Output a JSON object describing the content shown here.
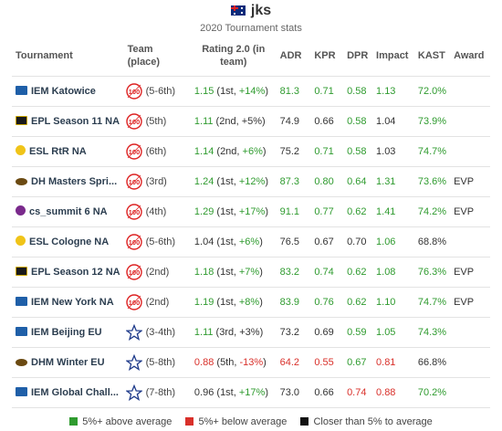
{
  "header": {
    "flag_icon": "australia-flag-icon",
    "player": "jks",
    "subtitle": "2020 Tournament stats"
  },
  "columns": {
    "tournament": "Tournament",
    "team": "Team (place)",
    "rating": "Rating 2.0 (in team)",
    "adr": "ADR",
    "kpr": "KPR",
    "dpr": "DPR",
    "impact": "Impact",
    "kast": "KAST",
    "award": "Award"
  },
  "colors": {
    "above": "#2f9b2f",
    "below": "#d9302a",
    "close": "#333333"
  },
  "rows": [
    {
      "tournament": "IEM Katowice",
      "logo": "iem",
      "team_logo": "100thieves-logo-icon",
      "place": "(5-6th)",
      "rating": "1.15",
      "rank": "1st, ",
      "diff": "+14%",
      "rating_c": "g",
      "diff_c": "g",
      "adr": "81.3",
      "adr_c": "g",
      "kpr": "0.71",
      "kpr_c": "g",
      "dpr": "0.58",
      "dpr_c": "g",
      "impact": "1.13",
      "impact_c": "g",
      "kast": "72.0%",
      "kast_c": "g",
      "award": ""
    },
    {
      "tournament": "EPL Season 11 NA",
      "logo": "epl",
      "team_logo": "100thieves-logo-icon",
      "place": "(5th)",
      "rating": "1.11",
      "rank": "2nd, ",
      "diff": "+5%",
      "rating_c": "g",
      "diff_c": "k",
      "adr": "74.9",
      "adr_c": "k",
      "kpr": "0.66",
      "kpr_c": "k",
      "dpr": "0.58",
      "dpr_c": "g",
      "impact": "1.04",
      "impact_c": "k",
      "kast": "73.9%",
      "kast_c": "g",
      "award": ""
    },
    {
      "tournament": "ESL RtR NA",
      "logo": "esl",
      "team_logo": "100thieves-logo-icon",
      "place": "(6th)",
      "rating": "1.14",
      "rank": "2nd, ",
      "diff": "+6%",
      "rating_c": "g",
      "diff_c": "g",
      "adr": "75.2",
      "adr_c": "k",
      "kpr": "0.71",
      "kpr_c": "g",
      "dpr": "0.58",
      "dpr_c": "g",
      "impact": "1.03",
      "impact_c": "k",
      "kast": "74.7%",
      "kast_c": "g",
      "award": ""
    },
    {
      "tournament": "DH Masters Spri...",
      "logo": "dh",
      "team_logo": "100thieves-logo-icon",
      "place": "(3rd)",
      "rating": "1.24",
      "rank": "1st, ",
      "diff": "+12%",
      "rating_c": "g",
      "diff_c": "g",
      "adr": "87.3",
      "adr_c": "g",
      "kpr": "0.80",
      "kpr_c": "g",
      "dpr": "0.64",
      "dpr_c": "g",
      "impact": "1.31",
      "impact_c": "g",
      "kast": "73.6%",
      "kast_c": "g",
      "award": "EVP"
    },
    {
      "tournament": "cs_summit 6 NA",
      "logo": "summit",
      "team_logo": "100thieves-logo-icon",
      "place": "(4th)",
      "rating": "1.29",
      "rank": "1st, ",
      "diff": "+17%",
      "rating_c": "g",
      "diff_c": "g",
      "adr": "91.1",
      "adr_c": "g",
      "kpr": "0.77",
      "kpr_c": "g",
      "dpr": "0.62",
      "dpr_c": "g",
      "impact": "1.41",
      "impact_c": "g",
      "kast": "74.2%",
      "kast_c": "g",
      "award": "EVP"
    },
    {
      "tournament": "ESL Cologne NA",
      "logo": "esl",
      "team_logo": "100thieves-logo-icon",
      "place": "(5-6th)",
      "rating": "1.04",
      "rank": "1st, ",
      "diff": "+6%",
      "rating_c": "k",
      "diff_c": "g",
      "adr": "76.5",
      "adr_c": "k",
      "kpr": "0.67",
      "kpr_c": "k",
      "dpr": "0.70",
      "dpr_c": "k",
      "impact": "1.06",
      "impact_c": "g",
      "kast": "68.8%",
      "kast_c": "k",
      "award": ""
    },
    {
      "tournament": "EPL Season 12 NA",
      "logo": "epl",
      "team_logo": "100thieves-logo-icon",
      "place": "(2nd)",
      "rating": "1.18",
      "rank": "1st, ",
      "diff": "+7%",
      "rating_c": "g",
      "diff_c": "g",
      "adr": "83.2",
      "adr_c": "g",
      "kpr": "0.74",
      "kpr_c": "g",
      "dpr": "0.62",
      "dpr_c": "g",
      "impact": "1.08",
      "impact_c": "g",
      "kast": "76.3%",
      "kast_c": "g",
      "award": "EVP"
    },
    {
      "tournament": "IEM New York NA",
      "logo": "iem",
      "team_logo": "100thieves-logo-icon",
      "place": "(2nd)",
      "rating": "1.19",
      "rank": "1st, ",
      "diff": "+8%",
      "rating_c": "g",
      "diff_c": "g",
      "adr": "83.9",
      "adr_c": "g",
      "kpr": "0.76",
      "kpr_c": "g",
      "dpr": "0.62",
      "dpr_c": "g",
      "impact": "1.10",
      "impact_c": "g",
      "kast": "74.7%",
      "kast_c": "g",
      "award": "EVP"
    },
    {
      "tournament": "IEM Beijing EU",
      "logo": "iem",
      "team_logo": "star-team-logo-icon",
      "place": "(3-4th)",
      "rating": "1.11",
      "rank": "3rd, ",
      "diff": "+3%",
      "rating_c": "g",
      "diff_c": "k",
      "adr": "73.2",
      "adr_c": "k",
      "kpr": "0.69",
      "kpr_c": "k",
      "dpr": "0.59",
      "dpr_c": "g",
      "impact": "1.05",
      "impact_c": "g",
      "kast": "74.3%",
      "kast_c": "g",
      "award": ""
    },
    {
      "tournament": "DHM Winter EU",
      "logo": "dh",
      "team_logo": "star-team-logo-icon",
      "place": "(5-8th)",
      "rating": "0.88",
      "rank": "5th, ",
      "diff": "-13%",
      "rating_c": "r",
      "diff_c": "r",
      "adr": "64.2",
      "adr_c": "r",
      "kpr": "0.55",
      "kpr_c": "r",
      "dpr": "0.67",
      "dpr_c": "g",
      "impact": "0.81",
      "impact_c": "r",
      "kast": "66.8%",
      "kast_c": "k",
      "award": ""
    },
    {
      "tournament": "IEM Global Chall...",
      "logo": "iem",
      "team_logo": "star-team-logo-icon",
      "place": "(7-8th)",
      "rating": "0.96",
      "rank": "1st, ",
      "diff": "+17%",
      "rating_c": "k",
      "diff_c": "g",
      "adr": "73.0",
      "adr_c": "k",
      "kpr": "0.66",
      "kpr_c": "k",
      "dpr": "0.74",
      "dpr_c": "r",
      "impact": "0.88",
      "impact_c": "r",
      "kast": "70.2%",
      "kast_c": "g",
      "award": ""
    }
  ],
  "legend": {
    "above": "5%+ above average",
    "below": "5%+ below average",
    "close": "Closer than 5% to average"
  }
}
